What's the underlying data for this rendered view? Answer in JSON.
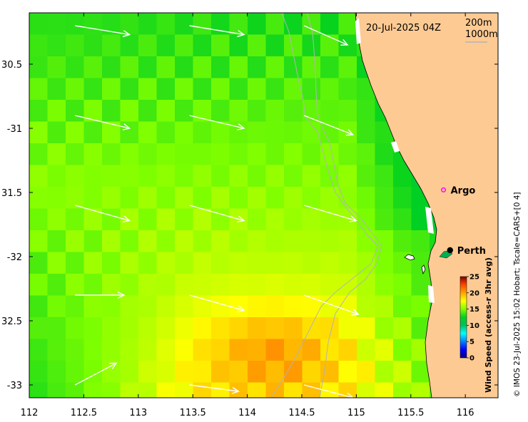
{
  "map": {
    "timestamp": "20-Jul-2025 04Z",
    "contour_legend": [
      "200m",
      "1000m"
    ],
    "credit": "© IMOS 23-Jul-2025 15:02 Hobart; Tscale=CARS+[0 4]",
    "lon_range": [
      112,
      116.3
    ],
    "lat_range": [
      -33.1,
      -30.1
    ],
    "x_ticks": [
      112,
      112.5,
      113,
      113.5,
      114,
      114.5,
      115,
      115.5,
      116
    ],
    "y_ticks": [
      {
        "value": -30.5,
        "label": "30.5"
      },
      {
        "value": -31,
        "label": "-31"
      },
      {
        "value": -31.5,
        "label": "31.5"
      },
      {
        "value": -32,
        "label": "-32"
      },
      {
        "value": -32.5,
        "label": "32.5"
      },
      {
        "value": -33,
        "label": "-33"
      }
    ],
    "places": [
      {
        "name": "Argo",
        "lon": 115.8,
        "lat": -31.48,
        "marker": "magenta-circle-icon"
      },
      {
        "name": "Perth",
        "lon": 115.86,
        "lat": -31.95,
        "marker": "black-dot-icon"
      }
    ],
    "colorbar": {
      "title": "Wind Speed (access-r 3hr avg)",
      "min": 0,
      "max": 25,
      "ticks": [
        0,
        5,
        10,
        15,
        20,
        25
      ],
      "colors": [
        "#00007f",
        "#0000ff",
        "#007fff",
        "#00ffff",
        "#00c060",
        "#00d020",
        "#7fff00",
        "#ffff00",
        "#ffa500",
        "#ff4500",
        "#7f0000"
      ]
    },
    "land_color": "#fdca93",
    "wind_arrows": [
      {
        "lon": 112.42,
        "lat": -30.2,
        "dlon": 0.5,
        "dlat": -0.07
      },
      {
        "lon": 113.47,
        "lat": -30.2,
        "dlon": 0.5,
        "dlat": -0.07
      },
      {
        "lon": 114.52,
        "lat": -30.2,
        "dlon": 0.4,
        "dlat": -0.15
      },
      {
        "lon": 112.42,
        "lat": -30.9,
        "dlon": 0.5,
        "dlat": -0.1
      },
      {
        "lon": 113.47,
        "lat": -30.9,
        "dlon": 0.5,
        "dlat": -0.1
      },
      {
        "lon": 114.52,
        "lat": -30.9,
        "dlon": 0.45,
        "dlat": -0.15
      },
      {
        "lon": 112.42,
        "lat": -31.6,
        "dlon": 0.5,
        "dlat": -0.12
      },
      {
        "lon": 113.47,
        "lat": -31.6,
        "dlon": 0.5,
        "dlat": -0.12
      },
      {
        "lon": 114.52,
        "lat": -31.6,
        "dlon": 0.48,
        "dlat": -0.12
      },
      {
        "lon": 112.42,
        "lat": -32.3,
        "dlon": 0.45,
        "dlat": 0.0
      },
      {
        "lon": 113.47,
        "lat": -32.3,
        "dlon": 0.5,
        "dlat": -0.12
      },
      {
        "lon": 114.52,
        "lat": -32.3,
        "dlon": 0.5,
        "dlat": -0.15
      },
      {
        "lon": 112.42,
        "lat": -33.0,
        "dlon": 0.38,
        "dlat": 0.17
      },
      {
        "lon": 113.47,
        "lat": -33.0,
        "dlon": 0.45,
        "dlat": -0.05
      },
      {
        "lon": 114.52,
        "lat": -33.0,
        "dlon": 0.45,
        "dlat": -0.1
      }
    ]
  }
}
